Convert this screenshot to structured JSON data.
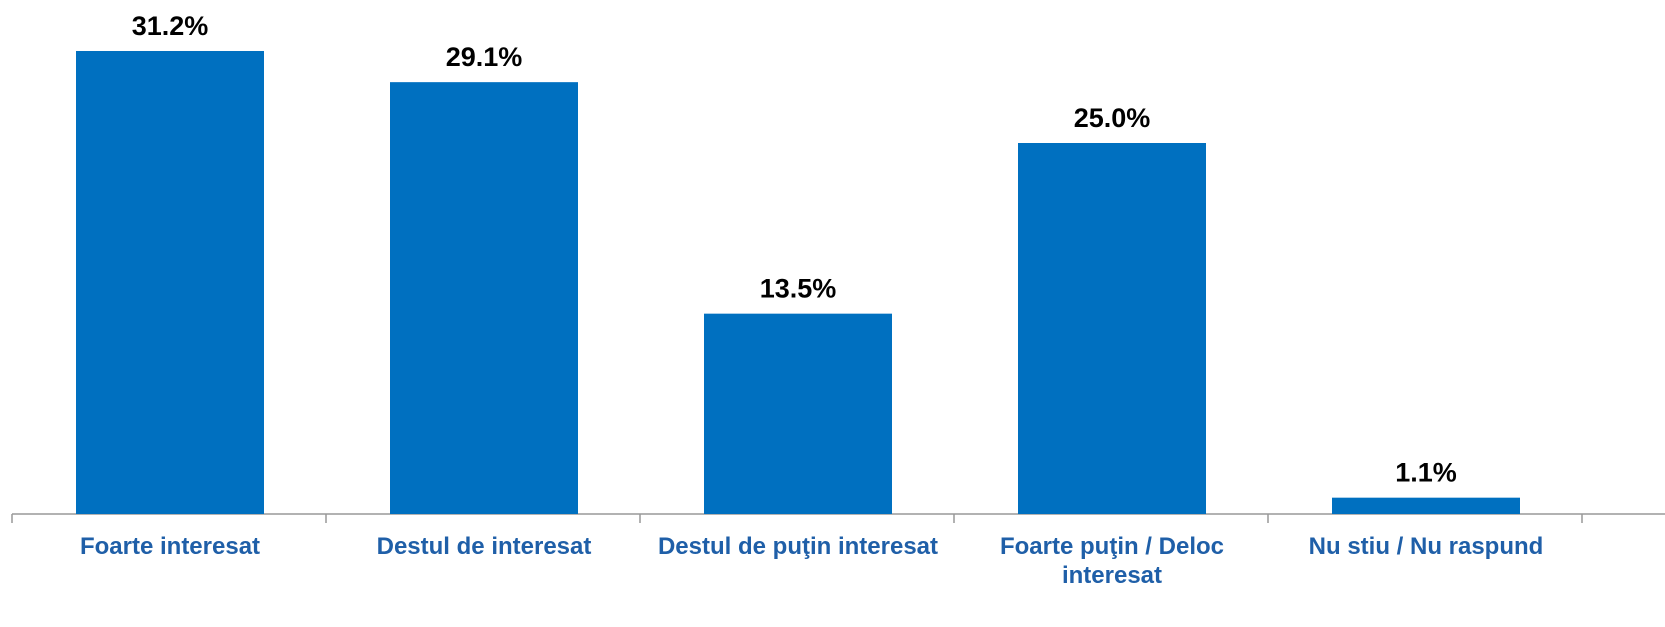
{
  "chart_data": {
    "type": "bar",
    "categories": [
      "Foarte interesat",
      "Destul de interesat",
      "Destul de puţin interesat",
      "Foarte puţin / Deloc interesat",
      "Nu stiu / Nu raspund"
    ],
    "values": [
      31.2,
      29.1,
      13.5,
      25.0,
      1.1
    ],
    "value_labels": [
      "31.2%",
      "29.1%",
      "13.5%",
      "25.0%",
      "1.1%"
    ],
    "color": "#0070c0"
  }
}
